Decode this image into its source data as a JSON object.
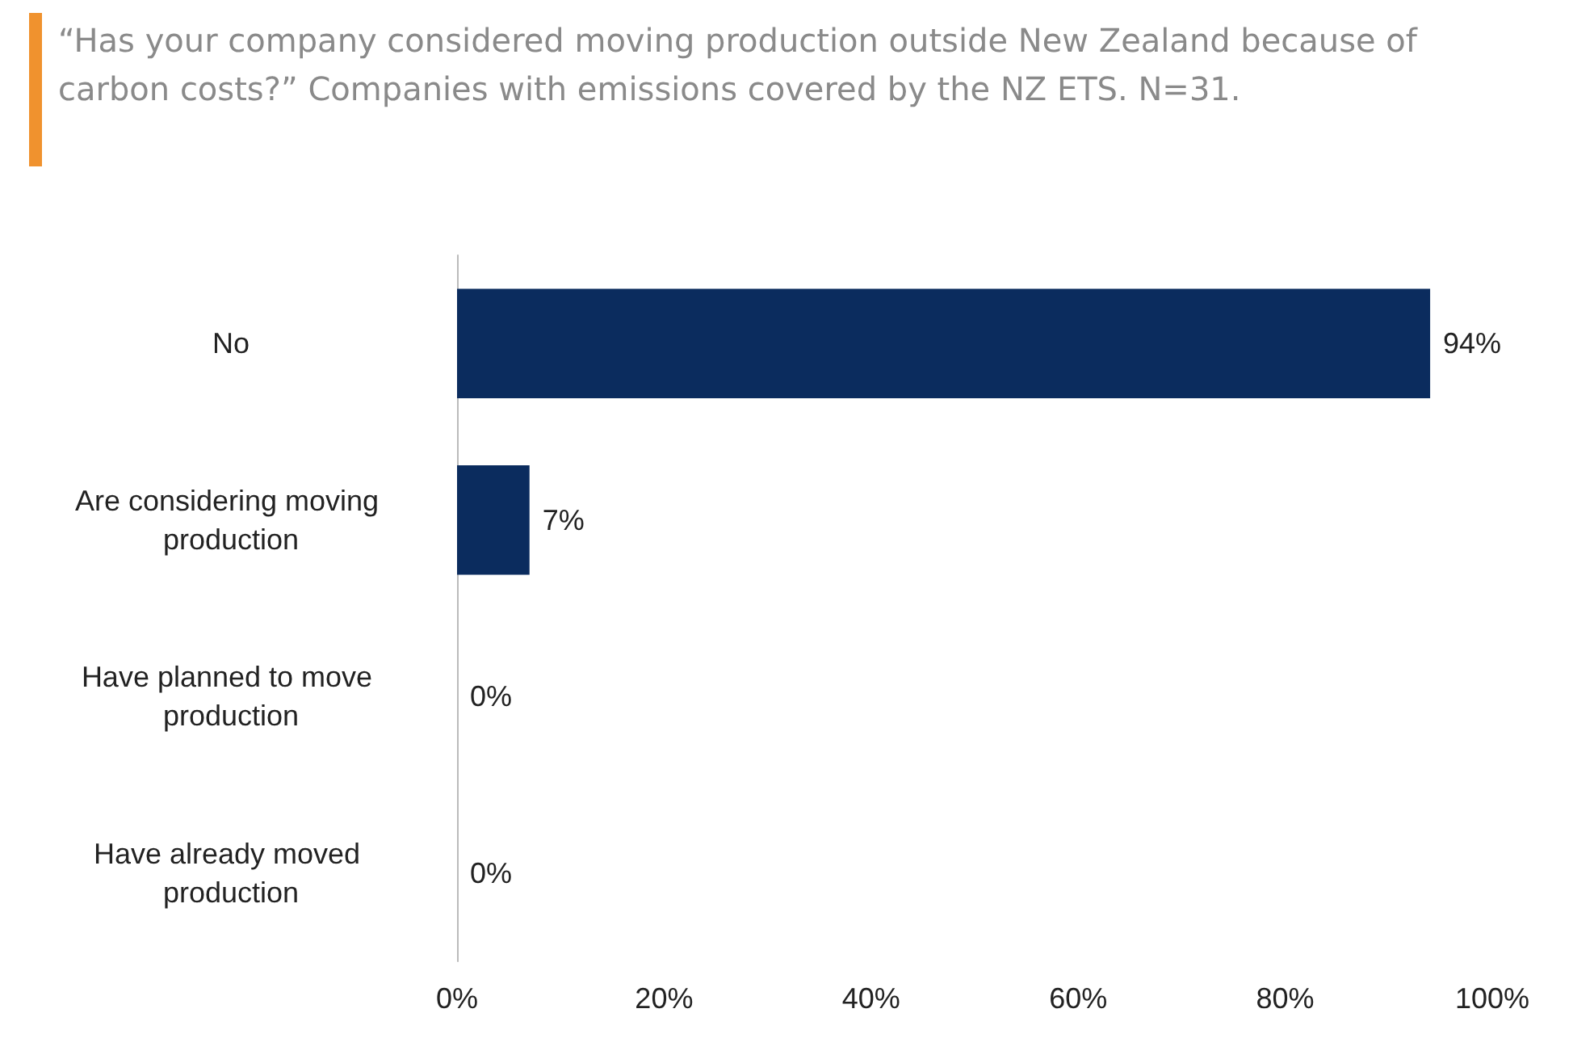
{
  "chart_data": {
    "type": "bar",
    "orientation": "horizontal",
    "title": "“Has your company considered moving production outside New Zealand because of carbon costs?” Companies with emissions covered by the NZ ETS. N=31.",
    "categories": [
      "No",
      "Are considering moving production",
      "Have planned to move production",
      "Have already moved production"
    ],
    "values": [
      94,
      7,
      0,
      0
    ],
    "value_labels": [
      "94%",
      "7%",
      "0%",
      "0%"
    ],
    "color": "#0b2c5e",
    "xlim": [
      0,
      100
    ],
    "xticks": [
      {
        "value": 0,
        "label": "0%"
      },
      {
        "value": 20,
        "label": "20%"
      },
      {
        "value": 40,
        "label": "40%"
      },
      {
        "value": 60,
        "label": "60%"
      },
      {
        "value": 80,
        "label": "80%"
      },
      {
        "value": 100,
        "label": "100%"
      }
    ],
    "grid": false
  }
}
